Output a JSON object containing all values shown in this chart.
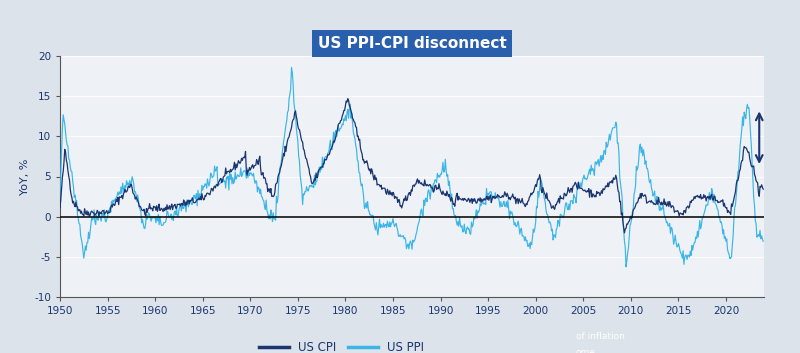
{
  "title": "US PPI-CPI disconnect",
  "title_bg_color": "#2a5fad",
  "title_text_color": "#ffffff",
  "ylabel": "YoY, %",
  "ylim": [
    -10,
    20
  ],
  "yticks": [
    -10,
    -5,
    0,
    5,
    10,
    15,
    20
  ],
  "xlim": [
    1950,
    2024
  ],
  "xticks": [
    1950,
    1955,
    1960,
    1965,
    1970,
    1975,
    1980,
    1985,
    1990,
    1995,
    2000,
    2005,
    2010,
    2015,
    2020
  ],
  "cpi_color": "#1a3570",
  "ppi_color": "#3bb5e8",
  "fig_bg_color": "#dce3ea",
  "plot_bg_color": "#eef1f5",
  "legend_cpi": "US CPI",
  "legend_ppi": "US PPI",
  "zero_line_color": "#111111",
  "arrow_color": "#1a3570",
  "footer_bg_color": "#7a8a9a"
}
